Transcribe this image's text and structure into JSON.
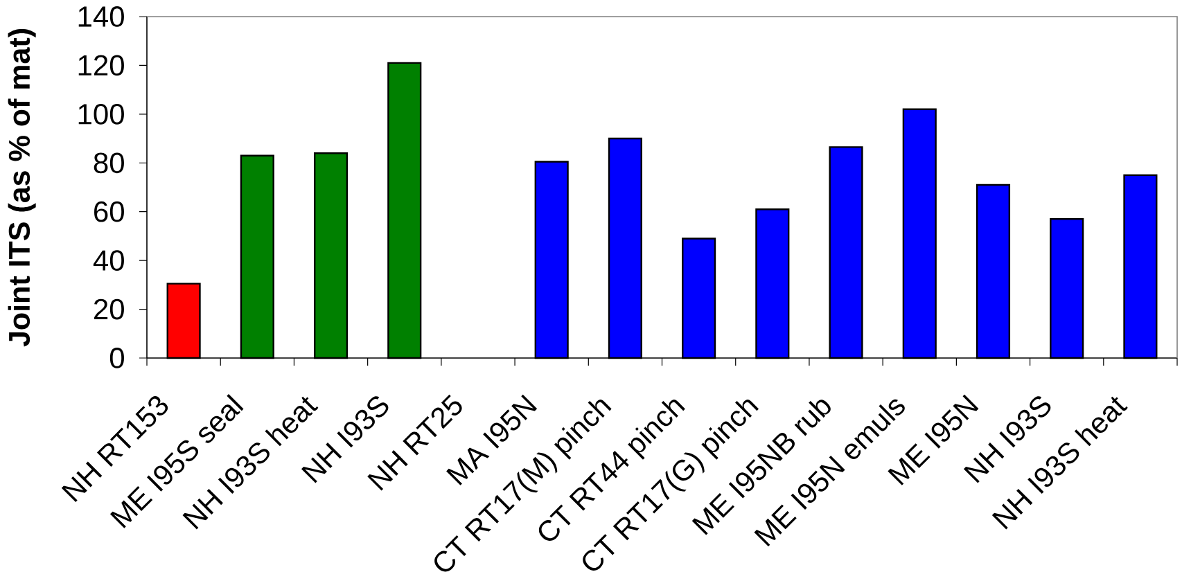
{
  "chart_data": {
    "type": "bar",
    "ylabel": "Joint ITS (as % of mat)",
    "categories": [
      "NH RT153",
      "ME I95S seal",
      "NH I93S heat",
      "NH I93S",
      "NH RT25",
      "MA I95N",
      "CT RT17(M) pinch",
      "CT RT44 pinch",
      "CT RT17(G) pinch",
      "ME I95NB rub",
      "ME I95N emuls",
      "ME I95N",
      "NH I93S",
      "NH I93S heat"
    ],
    "values": [
      30.5,
      83,
      84,
      121,
      null,
      80.5,
      90,
      49,
      61,
      86.5,
      102,
      71,
      57,
      75
    ],
    "colors": [
      "#ff0000",
      "#008000",
      "#008000",
      "#008000",
      null,
      "#0000ff",
      "#0000ff",
      "#0000ff",
      "#0000ff",
      "#0000ff",
      "#0000ff",
      "#0000ff",
      "#0000ff",
      "#0000ff"
    ],
    "ylim": [
      0,
      140
    ],
    "yticks": [
      0,
      20,
      40,
      60,
      80,
      100,
      120,
      140
    ]
  }
}
